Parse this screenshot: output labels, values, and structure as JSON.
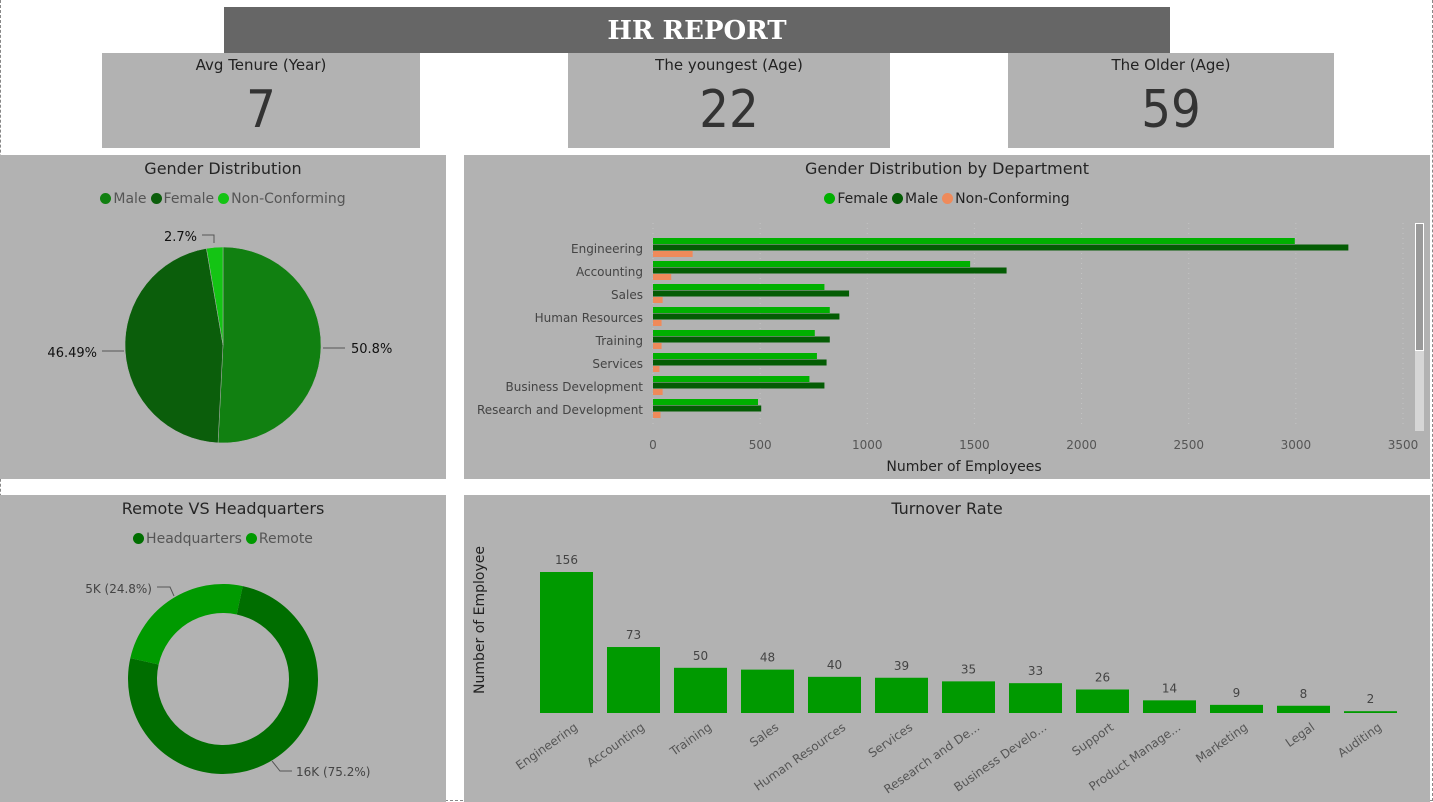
{
  "header": {
    "title": "HR REPORT"
  },
  "kpis": [
    {
      "label": "Avg Tenure (Year)",
      "value": "7"
    },
    {
      "label": "The youngest (Age)",
      "value": "22"
    },
    {
      "label": "The Older (Age)",
      "value": "59"
    }
  ],
  "chart_data": [
    {
      "type": "pie",
      "title": "Gender Distribution",
      "labels": [
        "Male",
        "Female",
        "Non-Conforming"
      ],
      "values": [
        50.8,
        46.49,
        2.7
      ],
      "data_labels": [
        "50.8%",
        "46.49%",
        "2.7%"
      ],
      "colors": [
        "#118011",
        "#0b5e0b",
        "#14c414"
      ],
      "legend": "top"
    },
    {
      "type": "bar",
      "orientation": "horizontal",
      "title": "Gender Distribution by Department",
      "categories": [
        "Engineering",
        "Accounting",
        "Sales",
        "Human Resources",
        "Training",
        "Services",
        "Business Development",
        "Research and Development"
      ],
      "series": [
        {
          "name": "Female",
          "color": "#00b000",
          "values": [
            2995,
            1480,
            800,
            825,
            755,
            765,
            730,
            490
          ]
        },
        {
          "name": "Male",
          "color": "#045c04",
          "values": [
            3245,
            1650,
            915,
            870,
            825,
            810,
            800,
            505
          ]
        },
        {
          "name": "Non-Conforming",
          "color": "#ef8a5a",
          "values": [
            185,
            85,
            45,
            40,
            40,
            30,
            45,
            35
          ]
        }
      ],
      "xlabel": "Number of Employees",
      "xlim": [
        0,
        3500
      ],
      "xticks": [
        "0",
        "500",
        "1000",
        "1500",
        "2000",
        "2500",
        "3000",
        "3500"
      ],
      "legend": "top"
    },
    {
      "type": "pie",
      "subtype": "donut",
      "title": "Remote VS Headquarters",
      "labels": [
        "Headquarters",
        "Remote"
      ],
      "values": [
        75.2,
        24.8
      ],
      "data_labels": [
        "16K (75.2%)",
        "5K (24.8%)"
      ],
      "colors": [
        "#006e00",
        "#009a00"
      ],
      "legend": "top"
    },
    {
      "type": "bar",
      "title": "Turnover Rate",
      "ylabel": "Number of Employee",
      "categories": [
        "Engineering",
        "Accounting",
        "Training",
        "Sales",
        "Human Resources",
        "Services",
        "Research and De...",
        "Business Develo...",
        "Support",
        "Product Manage...",
        "Marketing",
        "Legal",
        "Auditing"
      ],
      "values": [
        156,
        73,
        50,
        48,
        40,
        39,
        35,
        33,
        26,
        14,
        9,
        8,
        2
      ],
      "data_labels": [
        "156",
        "73",
        "50",
        "48",
        "40",
        "39",
        "35",
        "33",
        "26",
        "14",
        "9",
        "8",
        "2"
      ],
      "color": "#009a00"
    }
  ]
}
